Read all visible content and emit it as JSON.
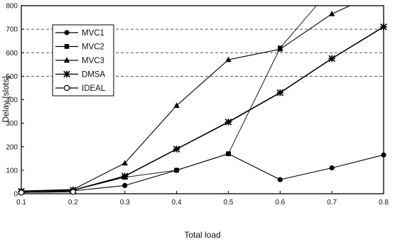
{
  "chart_data": {
    "type": "line",
    "title": "",
    "xlabel": "Total load",
    "ylabel": "Delay [slots]",
    "xlim": [
      0.1,
      0.8
    ],
    "ylim": [
      0,
      800
    ],
    "x_ticks": [
      "0.1",
      "0.2",
      "0.3",
      "0.4",
      "0.5",
      "0.6",
      "0.7",
      "0.8"
    ],
    "y_ticks": [
      "0",
      "100",
      "200",
      "300",
      "400",
      "500",
      "600",
      "700",
      "800"
    ],
    "grid": "dashed horizontal lines at 500, 600 and 700",
    "legend_position": "top-left",
    "series": [
      {
        "name": "MVC1",
        "marker": "circle-filled",
        "x": [
          0.1,
          0.2,
          0.3,
          0.4,
          0.5,
          0.6,
          0.7,
          0.8
        ],
        "y": [
          5,
          12,
          35,
          100,
          170,
          60,
          110,
          165
        ]
      },
      {
        "name": "MVC2",
        "marker": "square-filled",
        "x": [
          0.1,
          0.2,
          0.3,
          0.4,
          0.5,
          0.6,
          0.67
        ],
        "y": [
          10,
          15,
          70,
          100,
          170,
          620,
          800
        ]
      },
      {
        "name": "MVC3",
        "marker": "triangle-filled",
        "x": [
          0.1,
          0.2,
          0.3,
          0.4,
          0.5,
          0.6,
          0.7,
          0.735
        ],
        "y": [
          12,
          18,
          130,
          375,
          570,
          615,
          765,
          800
        ]
      },
      {
        "name": "DMSA",
        "marker": "asterisk",
        "x": [
          0.1,
          0.2,
          0.3,
          0.4,
          0.5,
          0.6,
          0.7,
          0.8
        ],
        "y": [
          10,
          15,
          75,
          190,
          305,
          430,
          575,
          710
        ]
      },
      {
        "name": "IDEAL",
        "marker": "circle-open",
        "x": [
          0.1,
          0.2
        ],
        "y": [
          5,
          8
        ]
      }
    ]
  }
}
